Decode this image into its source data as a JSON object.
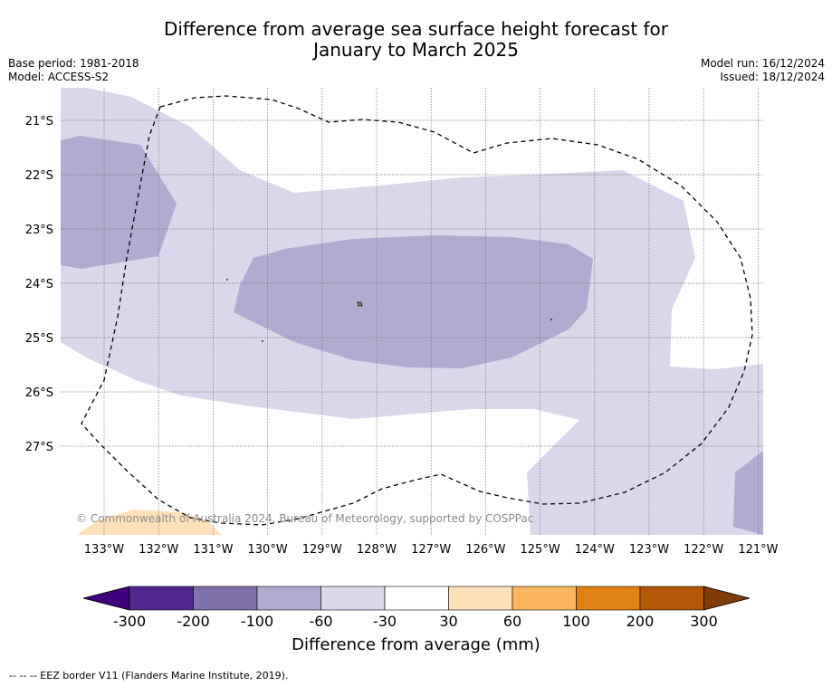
{
  "title_line1": "Difference from average sea surface height forecast for",
  "title_line2": "January to March 2025",
  "base_period": "Base period: 1981-2018",
  "model": "Model: ACCESS-S2",
  "model_run": "Model run: 16/12/2024",
  "issued": "Issued: 18/12/2024",
  "copyright": "© Commonwealth of Australia 2024, Bureau of Meteorology, supported by COSPPac",
  "footnote": "--  --  -- EEZ border V11 (Flanders Marine Institute, 2019).",
  "map": {
    "latitudes": [
      "21°S",
      "22°S",
      "23°S",
      "24°S",
      "25°S",
      "26°S",
      "27°S"
    ],
    "longitudes": [
      "133°W",
      "132°W",
      "131°W",
      "130°W",
      "129°W",
      "128°W",
      "127°W",
      "126°W",
      "125°W",
      "124°W",
      "123°W",
      "122°W",
      "121°W"
    ],
    "colors": {
      "m30_m60": "#d8d8ea",
      "m60_m100": "#b1abd2",
      "p30_p60": "#fee1b8"
    }
  },
  "colorbar": {
    "title": "Difference from average (mm)",
    "ticks": [
      "-300",
      "-200",
      "-100",
      "-60",
      "-30",
      "30",
      "60",
      "100",
      "200",
      "300"
    ],
    "colors": [
      "#3f007d",
      "#54278f",
      "#7f71ac",
      "#b1abd2",
      "#d8d8ea",
      "#ffffff",
      "#fee1b8",
      "#fdb65e",
      "#e08214",
      "#b35806",
      "#7f3b08"
    ]
  }
}
